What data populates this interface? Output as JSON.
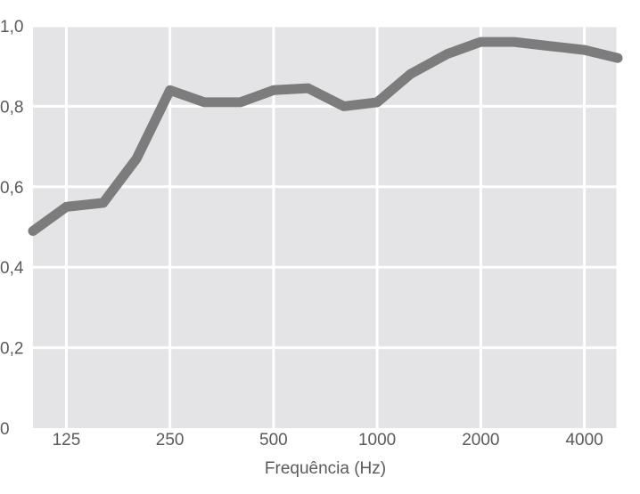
{
  "chart_data": {
    "type": "line",
    "title": "",
    "xlabel": "Frequência (Hz)",
    "ylabel": "",
    "x_scale": "log2",
    "x_ticks": [
      {
        "value": 125,
        "label": "125"
      },
      {
        "value": 250,
        "label": "250"
      },
      {
        "value": 500,
        "label": "500"
      },
      {
        "value": 1000,
        "label": "1000"
      },
      {
        "value": 2000,
        "label": "2000"
      },
      {
        "value": 4000,
        "label": "4000"
      }
    ],
    "y_ticks": [
      {
        "value": 0,
        "label": "0"
      },
      {
        "value": 0.2,
        "label": "0,2"
      },
      {
        "value": 0.4,
        "label": "0,4"
      },
      {
        "value": 0.6,
        "label": "0,6"
      },
      {
        "value": 0.8,
        "label": "0,8"
      },
      {
        "value": 1.0,
        "label": "1,0"
      }
    ],
    "xlim": [
      100,
      5000
    ],
    "ylim": [
      0,
      1.0
    ],
    "grid": true,
    "series": [
      {
        "x": [
          100,
          125,
          160,
          200,
          250,
          315,
          400,
          500,
          630,
          800,
          1000,
          1250,
          1600,
          2000,
          2500,
          3150,
          4000,
          5000
        ],
        "y": [
          0.49,
          0.55,
          0.56,
          0.67,
          0.84,
          0.81,
          0.81,
          0.84,
          0.845,
          0.8,
          0.81,
          0.88,
          0.93,
          0.96,
          0.96,
          0.95,
          0.94,
          0.92
        ],
        "color": "#7c7c7c"
      }
    ],
    "colors": {
      "plot_background": "#e4e4e6",
      "grid": "#ffffff",
      "line": "#7c7c7c",
      "text": "#5a5a5a"
    }
  }
}
